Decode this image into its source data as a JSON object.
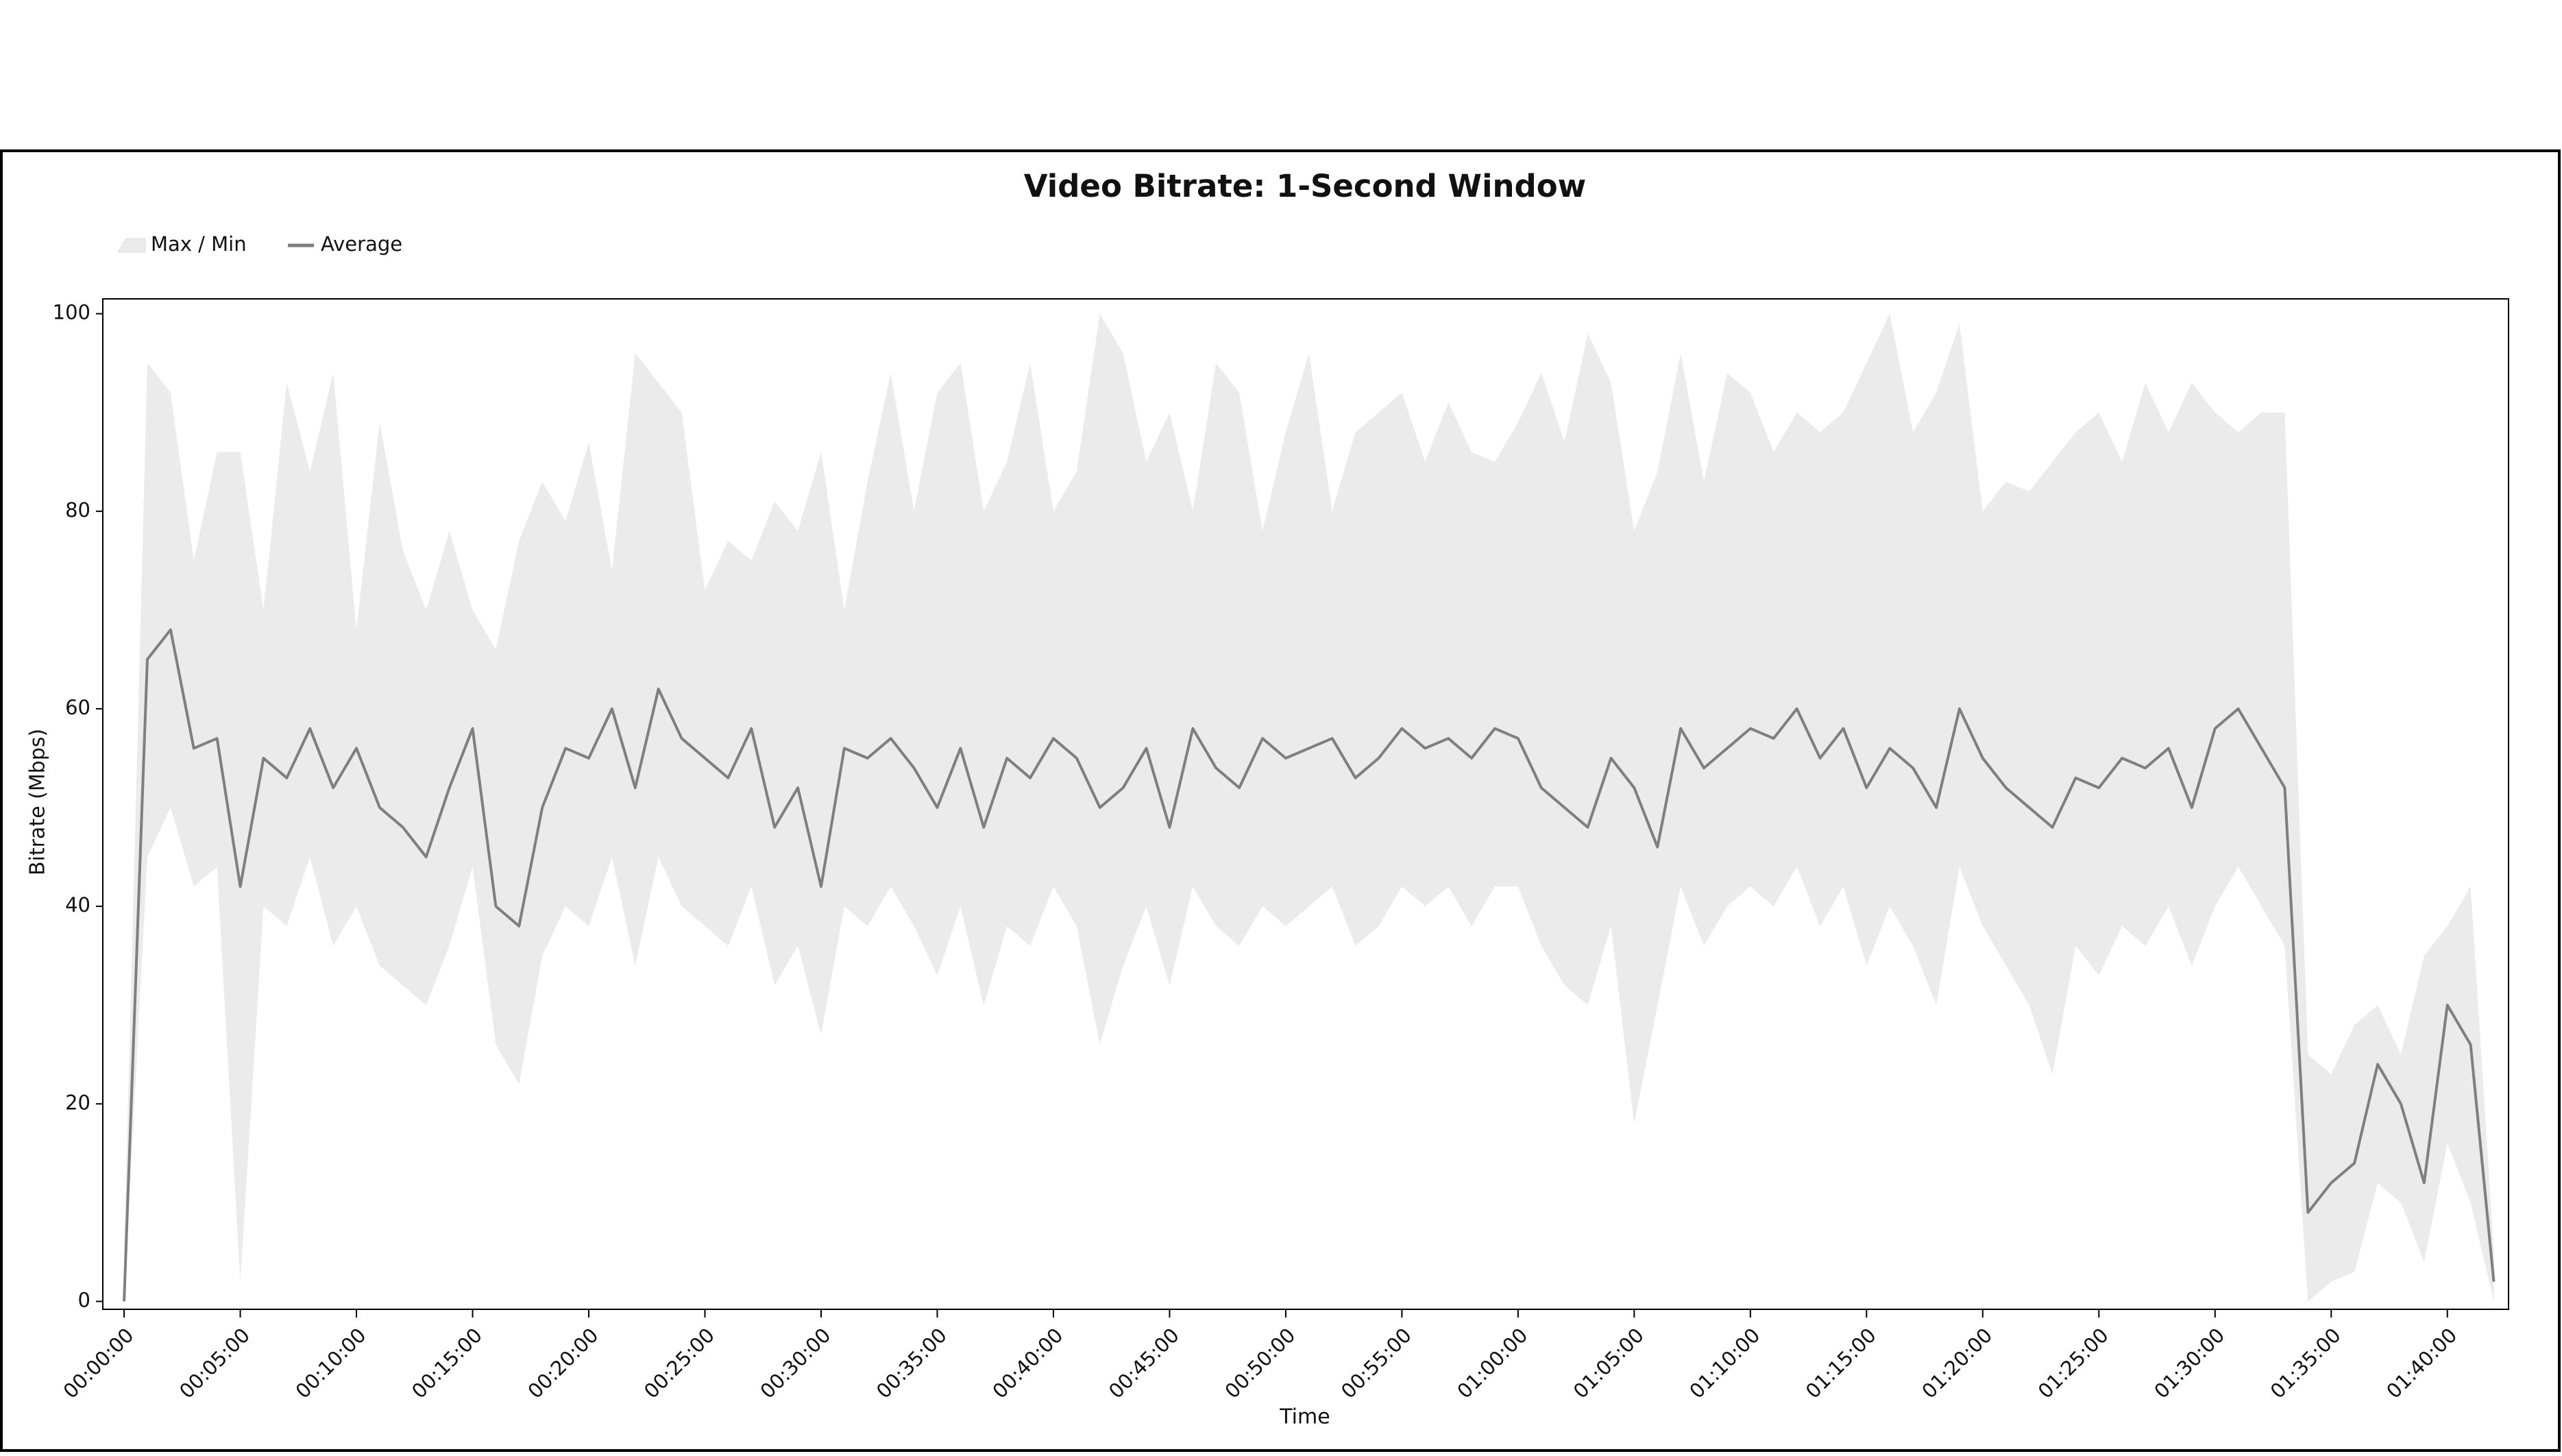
{
  "chart_data": {
    "type": "line",
    "title": "Video Bitrate: 1-Second Window",
    "xlabel": "Time",
    "ylabel": "Bitrate (Mbps)",
    "x": [
      0,
      60,
      120,
      180,
      240,
      300,
      360,
      420,
      480,
      540,
      600,
      660,
      720,
      780,
      840,
      900,
      960,
      1020,
      1080,
      1140,
      1200,
      1260,
      1320,
      1380,
      1440,
      1500,
      1560,
      1620,
      1680,
      1740,
      1800,
      1860,
      1920,
      1980,
      2040,
      2100,
      2160,
      2220,
      2280,
      2340,
      2400,
      2460,
      2520,
      2580,
      2640,
      2700,
      2760,
      2820,
      2880,
      2940,
      3000,
      3060,
      3120,
      3180,
      3240,
      3300,
      3360,
      3420,
      3480,
      3540,
      3600,
      3660,
      3720,
      3780,
      3840,
      3900,
      3960,
      4020,
      4080,
      4140,
      4200,
      4260,
      4320,
      4380,
      4440,
      4500,
      4560,
      4620,
      4680,
      4740,
      4800,
      4860,
      4920,
      4980,
      5040,
      5100,
      5160,
      5220,
      5280,
      5340,
      5400,
      5460,
      5520,
      5580,
      5640,
      5700,
      5760,
      5820,
      5880,
      5940,
      6000,
      6060,
      6120
    ],
    "series": [
      {
        "name": "Max / Min",
        "color": "#ebebeb",
        "values": [
          5,
          95,
          92,
          75,
          86,
          86,
          70,
          93,
          84,
          94,
          68,
          89,
          76,
          70,
          78,
          70,
          66,
          77,
          83,
          79,
          87,
          74,
          96,
          93,
          90,
          72,
          77,
          75,
          81,
          78,
          86,
          70,
          83,
          94,
          80,
          92,
          95,
          80,
          85,
          95,
          80,
          84,
          100,
          96,
          85,
          90,
          80,
          95,
          92,
          78,
          88,
          96,
          80,
          88,
          90,
          92,
          85,
          91,
          86,
          85,
          89,
          94,
          87,
          98,
          93,
          78,
          84,
          96,
          83,
          94,
          92,
          86,
          90,
          88,
          90,
          95,
          100,
          88,
          92,
          99,
          80,
          83,
          82,
          85,
          88,
          90,
          85,
          93,
          88,
          93,
          90,
          88,
          90,
          90,
          25,
          23,
          28,
          30,
          25,
          35,
          38,
          42,
          5
        ],
        "low": [
          0,
          45,
          50,
          42,
          44,
          2,
          40,
          38,
          45,
          36,
          40,
          34,
          32,
          30,
          36,
          44,
          26,
          22,
          35,
          40,
          38,
          45,
          34,
          45,
          40,
          38,
          36,
          42,
          32,
          36,
          27,
          40,
          38,
          42,
          38,
          33,
          40,
          30,
          38,
          36,
          42,
          38,
          26,
          34,
          40,
          32,
          42,
          38,
          36,
          40,
          38,
          40,
          42,
          36,
          38,
          42,
          40,
          42,
          38,
          42,
          42,
          36,
          32,
          30,
          38,
          18,
          30,
          42,
          36,
          40,
          42,
          40,
          44,
          38,
          42,
          34,
          40,
          36,
          30,
          44,
          38,
          34,
          30,
          23,
          36,
          33,
          38,
          36,
          40,
          34,
          40,
          44,
          40,
          36,
          0,
          2,
          3,
          12,
          10,
          4,
          16,
          10,
          0
        ]
      },
      {
        "name": "Average",
        "color": "#7f7f7f",
        "values": [
          0,
          65,
          68,
          56,
          57,
          42,
          55,
          53,
          58,
          52,
          56,
          50,
          48,
          45,
          52,
          58,
          40,
          38,
          50,
          56,
          55,
          60,
          52,
          62,
          57,
          55,
          53,
          58,
          48,
          52,
          42,
          56,
          55,
          57,
          54,
          50,
          56,
          48,
          55,
          53,
          57,
          55,
          50,
          52,
          56,
          48,
          58,
          54,
          52,
          57,
          55,
          56,
          57,
          53,
          55,
          58,
          56,
          57,
          55,
          58,
          57,
          52,
          50,
          48,
          55,
          52,
          46,
          58,
          54,
          56,
          58,
          57,
          60,
          55,
          58,
          52,
          56,
          54,
          50,
          60,
          55,
          52,
          50,
          48,
          53,
          52,
          55,
          54,
          56,
          50,
          58,
          60,
          56,
          52,
          9,
          12,
          14,
          24,
          20,
          12,
          30,
          26,
          2
        ]
      }
    ],
    "xlim": [
      -55,
      6158
    ],
    "ylim": [
      -0.8,
      101.5
    ],
    "xticks": [
      {
        "value": 0,
        "label": "00:00:00"
      },
      {
        "value": 300,
        "label": "00:05:00"
      },
      {
        "value": 600,
        "label": "00:10:00"
      },
      {
        "value": 900,
        "label": "00:15:00"
      },
      {
        "value": 1200,
        "label": "00:20:00"
      },
      {
        "value": 1500,
        "label": "00:25:00"
      },
      {
        "value": 1800,
        "label": "00:30:00"
      },
      {
        "value": 2100,
        "label": "00:35:00"
      },
      {
        "value": 2400,
        "label": "00:40:00"
      },
      {
        "value": 2700,
        "label": "00:45:00"
      },
      {
        "value": 3000,
        "label": "00:50:00"
      },
      {
        "value": 3300,
        "label": "00:55:00"
      },
      {
        "value": 3600,
        "label": "01:00:00"
      },
      {
        "value": 3900,
        "label": "01:05:00"
      },
      {
        "value": 4200,
        "label": "01:10:00"
      },
      {
        "value": 4500,
        "label": "01:15:00"
      },
      {
        "value": 4800,
        "label": "01:20:00"
      },
      {
        "value": 5100,
        "label": "01:25:00"
      },
      {
        "value": 5400,
        "label": "01:30:00"
      },
      {
        "value": 5700,
        "label": "01:35:00"
      },
      {
        "value": 6000,
        "label": "01:40:00"
      }
    ],
    "yticks": [
      0,
      20,
      40,
      60,
      80,
      100
    ]
  }
}
